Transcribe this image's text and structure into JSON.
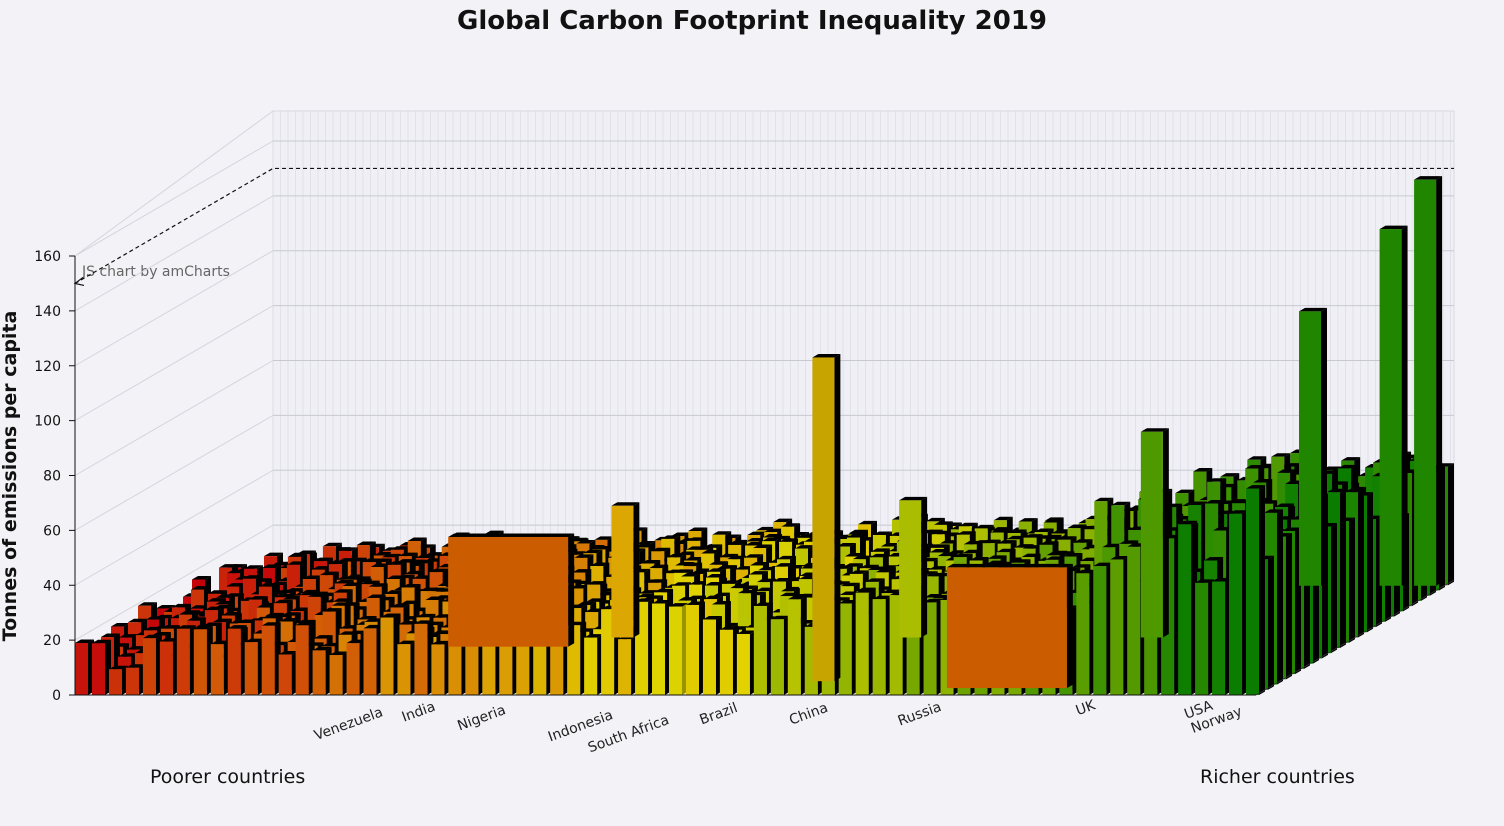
{
  "title": "Global Carbon Footprint Inequality 2019",
  "credit": "JS chart by amCharts",
  "footer": {
    "left": "Poorer countries",
    "right": "Richer countries"
  },
  "chart_data": {
    "type": "bar",
    "variant": "3d-layered-columns",
    "title": "Global Carbon Footprint Inequality 2019",
    "xlabel": "",
    "ylabel": "Tonnes of emissions per capita",
    "ylim": [
      0,
      160
    ],
    "yticks": [
      0,
      20,
      40,
      60,
      80,
      100,
      120,
      140,
      160
    ],
    "grid": true,
    "reference_line": 150,
    "x_annotation_left": "Poorer countries",
    "x_annotation_right": "Richer countries",
    "colors": {
      "poorer": "#c81a0a",
      "middle": "#e2d400",
      "richer": "#0a7d00",
      "highlight": "#cc5c00",
      "gridline": "#d4d4dc",
      "reference_line": "#111111"
    },
    "categories": [
      "Venezuela",
      "India",
      "Nigeria",
      "Indonesia",
      "South Africa",
      "Brazil",
      "China",
      "Russia",
      "UK",
      "USA",
      "Norway"
    ],
    "featured_bars": [
      {
        "label": "India",
        "value": 48
      },
      {
        "label": "China",
        "value": 50
      },
      {
        "label": "Russia",
        "value": 75
      },
      {
        "label": "Brazil",
        "value": 118
      },
      {
        "label": "UK",
        "value": 100
      },
      {
        "label": "USA",
        "value": 130
      },
      {
        "label": "Norway",
        "value": 148
      }
    ]
  }
}
